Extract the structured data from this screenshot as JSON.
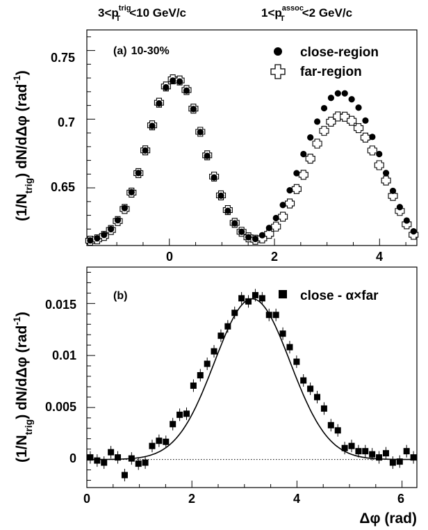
{
  "header": {
    "left": {
      "pre": "3<p",
      "sup": "trig",
      "sub": "T",
      "post": "<10 GeV/c"
    },
    "right": {
      "pre": "1<p",
      "sup": "assoc",
      "sub": "T",
      "post": "<2 GeV/c"
    }
  },
  "chart_data": [
    {
      "type": "scatter",
      "panel_label": "(a)",
      "annotation": "10-30%",
      "ylabel": {
        "pre": "(1/N",
        "sub": "trig",
        "post": ") dN/dΔφ (rad",
        "sup": "-1",
        "close": ")"
      },
      "xlim": [
        -1.57,
        4.71
      ],
      "ylim": [
        0.608,
        0.765
      ],
      "x_ticks": [
        "0",
        "2",
        "4"
      ],
      "y_ticks": [
        "0.65",
        "0.7",
        "0.75"
      ],
      "legend_position": "top-right",
      "series": [
        {
          "name": "close-region",
          "marker": "filled-circle",
          "x": [
            -1.505,
            -1.374,
            -1.243,
            -1.112,
            -0.982,
            -0.851,
            -0.72,
            -0.589,
            -0.458,
            -0.327,
            -0.196,
            -0.065,
            0.065,
            0.196,
            0.327,
            0.458,
            0.589,
            0.72,
            0.851,
            0.982,
            1.112,
            1.243,
            1.374,
            1.505,
            1.636,
            1.767,
            1.898,
            2.029,
            2.16,
            2.291,
            2.421,
            2.552,
            2.683,
            2.814,
            2.945,
            3.076,
            3.207,
            3.338,
            3.469,
            3.6,
            3.731,
            3.862,
            3.993,
            4.123,
            4.254,
            4.385,
            4.516,
            4.647
          ],
          "y": [
            0.6117,
            0.6132,
            0.6157,
            0.6199,
            0.6264,
            0.6352,
            0.6468,
            0.6608,
            0.6772,
            0.6951,
            0.7115,
            0.7232,
            0.7281,
            0.7275,
            0.7208,
            0.7074,
            0.6906,
            0.6733,
            0.6576,
            0.6443,
            0.6333,
            0.6242,
            0.618,
            0.614,
            0.6128,
            0.6155,
            0.6208,
            0.628,
            0.6375,
            0.6482,
            0.6607,
            0.6746,
            0.6867,
            0.6982,
            0.708,
            0.7155,
            0.7188,
            0.7188,
            0.7145,
            0.7084,
            0.699,
            0.6871,
            0.6746,
            0.6608,
            0.6478,
            0.636,
            0.6262,
            0.6183
          ]
        },
        {
          "name": "far-region",
          "marker": "open-cross",
          "x": [
            -1.505,
            -1.374,
            -1.243,
            -1.112,
            -0.982,
            -0.851,
            -0.72,
            -0.589,
            -0.458,
            -0.327,
            -0.196,
            -0.065,
            0.065,
            0.196,
            0.327,
            0.458,
            0.589,
            0.72,
            0.851,
            0.982,
            1.112,
            1.243,
            1.374,
            1.505,
            1.636,
            1.767,
            1.898,
            2.029,
            2.16,
            2.291,
            2.421,
            2.552,
            2.683,
            2.814,
            2.945,
            3.076,
            3.207,
            3.338,
            3.469,
            3.6,
            3.731,
            3.862,
            3.993,
            4.123,
            4.254,
            4.385,
            4.516,
            4.647
          ],
          "y": [
            0.6115,
            0.6125,
            0.615,
            0.6193,
            0.6258,
            0.6346,
            0.6465,
            0.6607,
            0.6773,
            0.6955,
            0.712,
            0.7238,
            0.729,
            0.7282,
            0.7212,
            0.7077,
            0.6908,
            0.6737,
            0.6582,
            0.6445,
            0.6338,
            0.6245,
            0.618,
            0.614,
            0.6122,
            0.6132,
            0.6165,
            0.6218,
            0.629,
            0.6386,
            0.6491,
            0.6595,
            0.6713,
            0.6822,
            0.6915,
            0.6982,
            0.702,
            0.7018,
            0.6988,
            0.6935,
            0.6866,
            0.6772,
            0.6665,
            0.6553,
            0.6441,
            0.6332,
            0.6235,
            0.6158
          ]
        }
      ]
    },
    {
      "type": "scatter",
      "panel_label": "(b)",
      "ylabel": {
        "pre": "(1/N",
        "sub": "trig",
        "post": ") dN/dΔφ (rad",
        "sup": "-1",
        "close": ")"
      },
      "xlabel": "Δφ (rad)",
      "xlim": [
        0,
        6.283
      ],
      "ylim": [
        -0.0027,
        0.0185
      ],
      "x_ticks": [
        "0",
        "2",
        "4",
        "6"
      ],
      "y_ticks": [
        "0",
        "0.005",
        "0.01",
        "0.015"
      ],
      "legend_position": "top-right",
      "series": [
        {
          "name": "close - α×far",
          "marker": "filled-square",
          "x": [
            0.065,
            0.196,
            0.327,
            0.458,
            0.589,
            0.72,
            0.851,
            0.982,
            1.112,
            1.243,
            1.374,
            1.505,
            1.636,
            1.767,
            1.898,
            2.029,
            2.16,
            2.291,
            2.421,
            2.552,
            2.683,
            2.814,
            2.945,
            3.076,
            3.207,
            3.338,
            3.469,
            3.6,
            3.731,
            3.862,
            3.993,
            4.123,
            4.254,
            4.385,
            4.516,
            4.647,
            4.778,
            4.909,
            5.04,
            5.171,
            5.301,
            5.432,
            5.563,
            5.694,
            5.825,
            5.956,
            6.087,
            6.218
          ],
          "y": [
            0.0002,
            -0.0001,
            -0.0003,
            0.0007,
            0.0002,
            -0.0015,
            0.0001,
            -0.0004,
            -0.0003,
            0.0013,
            0.0018,
            0.0017,
            0.0034,
            0.0043,
            0.0044,
            0.0071,
            0.0081,
            0.0092,
            0.0104,
            0.0119,
            0.0128,
            0.0141,
            0.0155,
            0.0152,
            0.0158,
            0.0155,
            0.0139,
            0.0139,
            0.0121,
            0.0108,
            0.0094,
            0.0076,
            0.0068,
            0.006,
            0.0049,
            0.0033,
            0.0028,
            0.0011,
            0.0013,
            0.0008,
            0.0008,
            0.0005,
            0.0002,
            0.0006,
            -0.0003,
            -0.0002,
            0.0008,
            0.0002
          ],
          "fit": "gaussian"
        }
      ]
    }
  ]
}
